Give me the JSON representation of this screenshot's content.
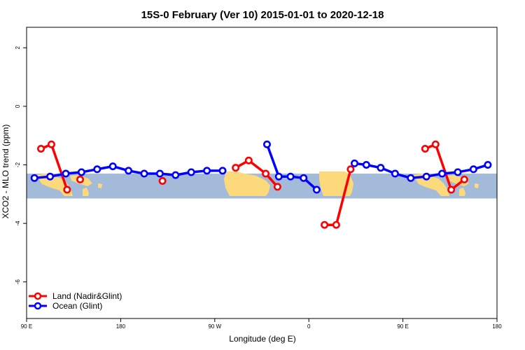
{
  "chart_data": {
    "type": "line",
    "title": "15S-0 February (Ver 10)   2015-01-01 to 2020-12-18",
    "xlabel": "Longitude (deg E)",
    "ylabel": "XCO2 - MLO trend (ppm)",
    "xlim": [
      90,
      450
    ],
    "ylim": [
      -7.25,
      2.7
    ],
    "x_ticks": [
      {
        "value": 90,
        "label": "90 E"
      },
      {
        "value": 162,
        "label": "180"
      },
      {
        "value": 234,
        "label": "90 W"
      },
      {
        "value": 306,
        "label": "0"
      },
      {
        "value": 378,
        "label": "90 E"
      },
      {
        "value": 450,
        "label": "180"
      }
    ],
    "y_ticks": [
      2,
      0,
      -2,
      -4,
      -6
    ],
    "legend_position": "bottom-left",
    "background_map": {
      "band_ylim": [
        -2.3,
        -3.15
      ],
      "ocean_color": "#a3bbd8",
      "land_color": "#fcd97a"
    },
    "series": [
      {
        "name": "Land (Nadir&Glint)",
        "color": "#ff0000",
        "segments": [
          [
            [
              101,
              -1.45
            ],
            [
              109,
              -1.3
            ],
            [
              121,
              -2.85
            ]
          ],
          [
            [
              131,
              -2.5
            ]
          ],
          [
            [
              194,
              -2.55
            ]
          ],
          [
            [
              250,
              -2.1
            ],
            [
              260,
              -1.85
            ],
            [
              273,
              -2.3
            ],
            [
              282,
              -2.75
            ]
          ],
          [
            [
              318,
              -4.05
            ],
            [
              327,
              -4.05
            ],
            [
              338,
              -2.15
            ]
          ],
          [
            [
              395,
              -1.45
            ],
            [
              403,
              -1.3
            ],
            [
              415,
              -2.85
            ],
            [
              425,
              -2.5
            ]
          ]
        ]
      },
      {
        "name": "Ocean (Glint)",
        "color": "#0000ff",
        "segments": [
          [
            [
              96,
              -2.45
            ],
            [
              108,
              -2.4
            ],
            [
              120,
              -2.3
            ],
            [
              132,
              -2.25
            ],
            [
              144,
              -2.15
            ],
            [
              156,
              -2.05
            ],
            [
              168,
              -2.2
            ],
            [
              180,
              -2.3
            ],
            [
              192,
              -2.3
            ],
            [
              204,
              -2.35
            ],
            [
              216,
              -2.25
            ],
            [
              228,
              -2.2
            ],
            [
              240,
              -2.2
            ]
          ],
          [
            [
              274,
              -1.3
            ],
            [
              283,
              -2.4
            ],
            [
              292,
              -2.4
            ],
            [
              302,
              -2.45
            ],
            [
              312,
              -2.85
            ]
          ],
          [
            [
              341,
              -1.95
            ],
            [
              350,
              -2.0
            ],
            [
              361,
              -2.1
            ],
            [
              372,
              -2.3
            ],
            [
              384,
              -2.45
            ],
            [
              396,
              -2.4
            ],
            [
              408,
              -2.3
            ],
            [
              420,
              -2.25
            ],
            [
              432,
              -2.15
            ],
            [
              443,
              -2.0
            ]
          ]
        ]
      }
    ]
  },
  "legend": {
    "land_label": "Land (Nadir&Glint)",
    "ocean_label": "Ocean (Glint)"
  }
}
